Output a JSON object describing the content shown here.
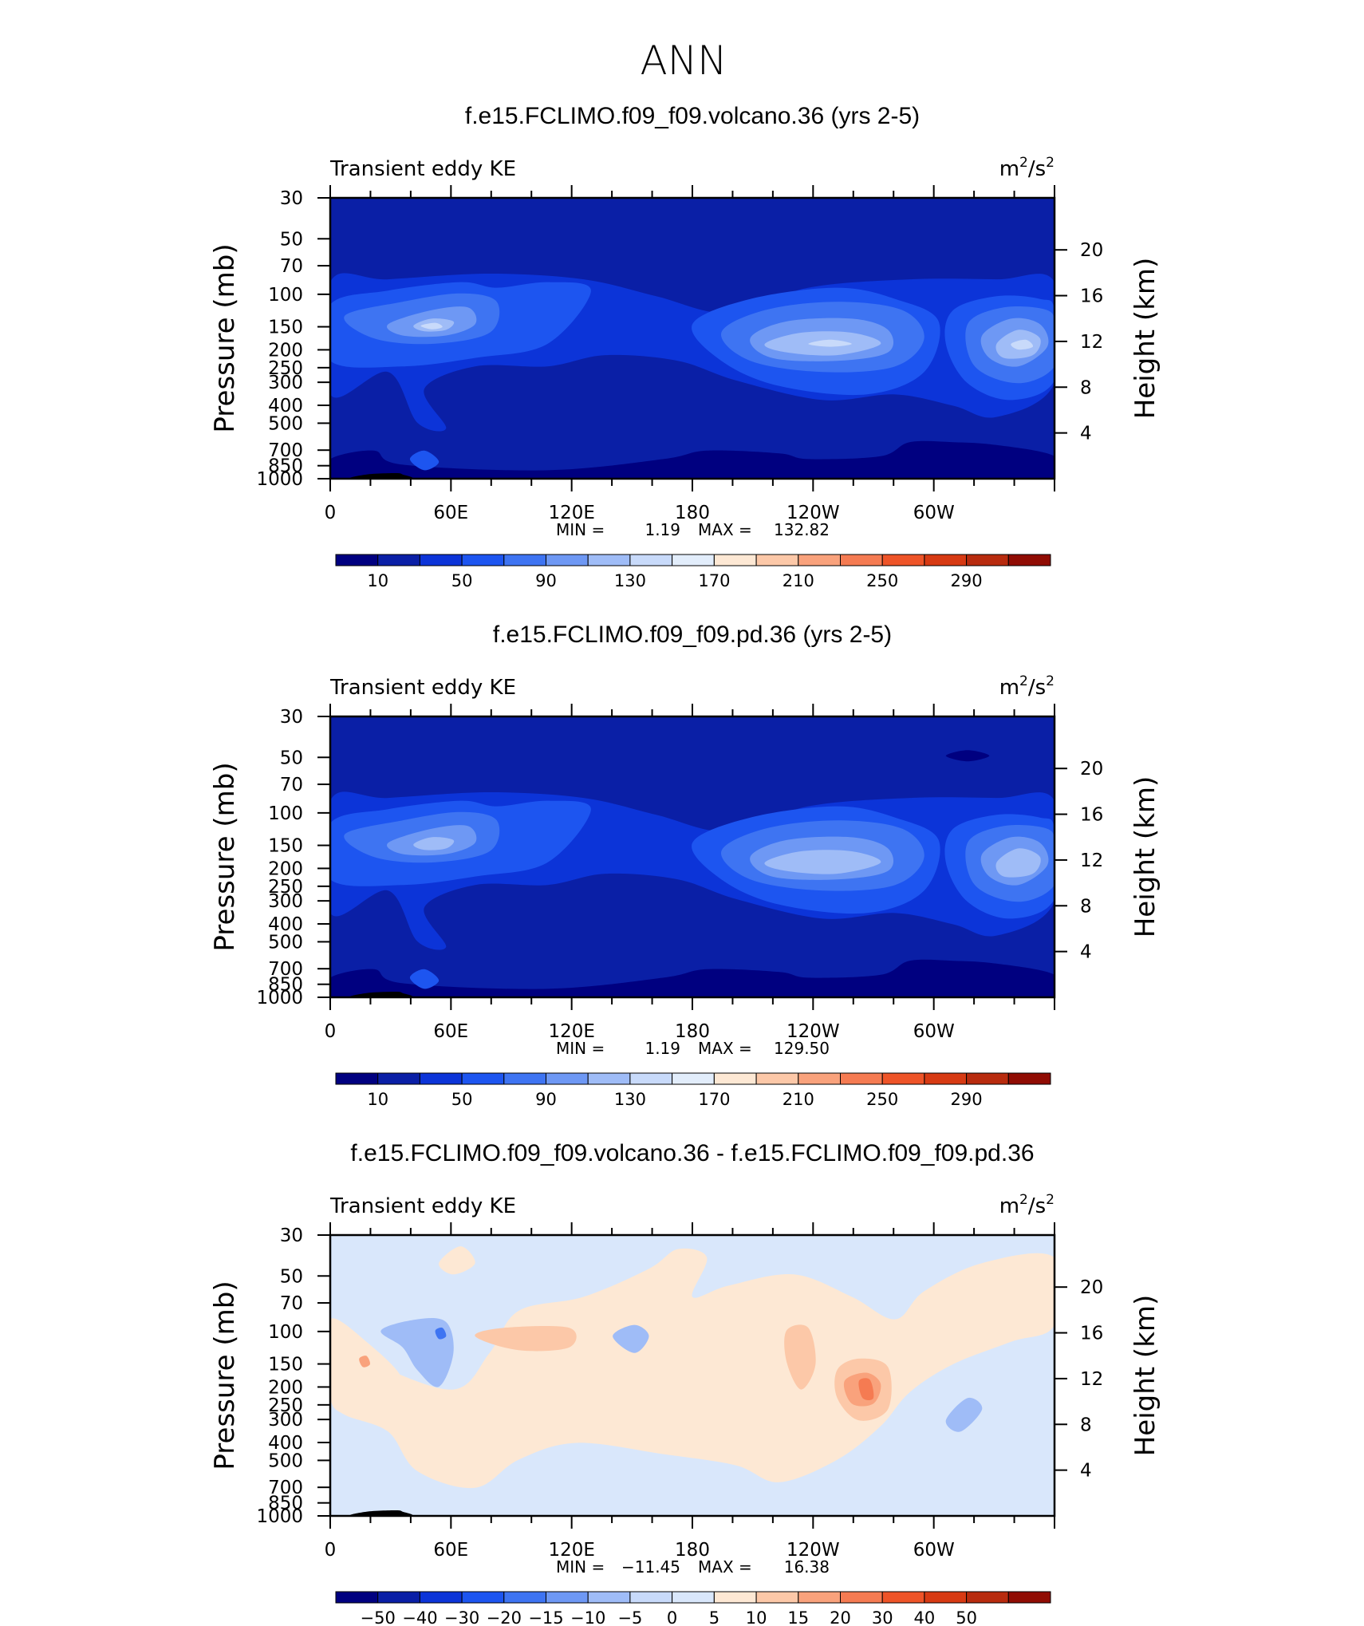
{
  "figure": {
    "title": "ANN"
  },
  "colorbar_abs": {
    "labels": [
      "10",
      "50",
      "90",
      "130",
      "170",
      "210",
      "250",
      "290"
    ],
    "colors": [
      "#000080",
      "#0a1fa6",
      "#0c34d8",
      "#1d55f0",
      "#3e74f2",
      "#6e98f4",
      "#9fbcf7",
      "#c8dafa",
      "#e2edfb",
      "#fde8d4",
      "#fcc8a8",
      "#f9a27c",
      "#f57b52",
      "#ee5428",
      "#d73a13",
      "#b82b0e",
      "#900c03"
    ]
  },
  "colorbar_diff": {
    "labels": [
      "−50",
      "−40",
      "−30",
      "−20",
      "−15",
      "−10",
      "−5",
      "0",
      "5",
      "10",
      "15",
      "20",
      "30",
      "40",
      "50"
    ],
    "colors": [
      "#000080",
      "#0a1fa6",
      "#0c34d8",
      "#1d55f0",
      "#3e74f2",
      "#6e98f4",
      "#9fbcf7",
      "#c8dafa",
      "#d9e7fb",
      "#fde8d4",
      "#fcc8a8",
      "#f9a27c",
      "#f57b52",
      "#ee5428",
      "#d73a13",
      "#b82b0e",
      "#900c03"
    ]
  },
  "chart_data": [
    {
      "type": "heatmap",
      "title": "f.e15.FCLIMO.f09_f09.volcano.36 (yrs 2-5)",
      "subtitle_left": "Transient eddy KE",
      "units": "m²/s²",
      "units_base": "m",
      "units_mid": "/s",
      "units_exp": "2",
      "ylabel": "Pressure (mb)",
      "ylabel2": "Height (km)",
      "x_ticks": [
        "0",
        "60E",
        "120E",
        "180",
        "120W",
        "60W"
      ],
      "y_ticks": [
        "30",
        "50",
        "70",
        "100",
        "150",
        "200",
        "250",
        "300",
        "400",
        "500",
        "700",
        "850",
        "1000"
      ],
      "y2_ticks": [
        "20",
        "16",
        "12",
        "8",
        "4"
      ],
      "min_label": "MIN =",
      "min_value": "1.19",
      "max_label": "MAX =",
      "max_value": "132.82",
      "scale": "log pressure",
      "colorbar": "abs"
    },
    {
      "type": "heatmap",
      "title": "f.e15.FCLIMO.f09_f09.pd.36 (yrs 2-5)",
      "subtitle_left": "Transient eddy KE",
      "units": "m²/s²",
      "units_base": "m",
      "units_mid": "/s",
      "units_exp": "2",
      "ylabel": "Pressure (mb)",
      "ylabel2": "Height (km)",
      "x_ticks": [
        "0",
        "60E",
        "120E",
        "180",
        "120W",
        "60W"
      ],
      "y_ticks": [
        "30",
        "50",
        "70",
        "100",
        "150",
        "200",
        "250",
        "300",
        "400",
        "500",
        "700",
        "850",
        "1000"
      ],
      "y2_ticks": [
        "20",
        "16",
        "12",
        "8",
        "4"
      ],
      "min_label": "MIN =",
      "min_value": "1.19",
      "max_label": "MAX =",
      "max_value": "129.50",
      "scale": "log pressure",
      "colorbar": "abs"
    },
    {
      "type": "heatmap",
      "title": "f.e15.FCLIMO.f09_f09.volcano.36 - f.e15.FCLIMO.f09_f09.pd.36",
      "subtitle_left": "Transient eddy KE",
      "units": "m²/s²",
      "units_base": "m",
      "units_mid": "/s",
      "units_exp": "2",
      "ylabel": "Pressure (mb)",
      "ylabel2": "Height (km)",
      "x_ticks": [
        "0",
        "60E",
        "120E",
        "180",
        "120W",
        "60W"
      ],
      "y_ticks": [
        "30",
        "50",
        "70",
        "100",
        "150",
        "200",
        "250",
        "300",
        "400",
        "500",
        "700",
        "850",
        "1000"
      ],
      "y2_ticks": [
        "20",
        "16",
        "12",
        "8",
        "4"
      ],
      "min_label": "MIN =",
      "min_value": "−11.45",
      "max_label": "MAX =",
      "max_value": "16.38",
      "scale": "log pressure",
      "colorbar": "diff"
    }
  ]
}
